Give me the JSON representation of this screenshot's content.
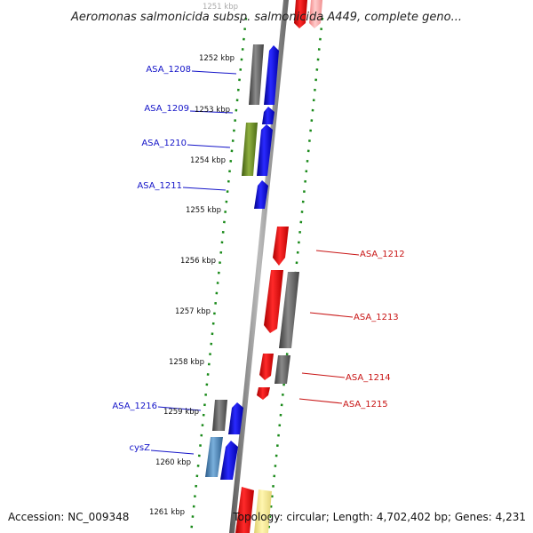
{
  "title": "Aeromonas salmonicida subsp. salmonicida A449, complete geno...",
  "accession": "Accession: NC_009348",
  "topology": "Topology: circular; Length: 4,702,402 bp; Genes: 4,231",
  "top_tick": "1251 kbp",
  "ticks": [
    "1252 kbp",
    "1253 kbp",
    "1254 kbp",
    "1255 kbp",
    "1256 kbp",
    "1257 kbp",
    "1258 kbp",
    "1259 kbp",
    "1260 kbp",
    "1261 kbp"
  ],
  "genes_left": [
    {
      "label": "ASA_1208",
      "color": "#1414c8"
    },
    {
      "label": "ASA_1209",
      "color": "#1414c8"
    },
    {
      "label": "ASA_1210",
      "color": "#1414c8"
    },
    {
      "label": "ASA_1211",
      "color": "#1414c8"
    },
    {
      "label": "ASA_1216",
      "color": "#1414c8"
    },
    {
      "label": "cysZ",
      "color": "#1414c8"
    }
  ],
  "genes_right": [
    {
      "label": "ASA_1212",
      "color": "#c81414"
    },
    {
      "label": "ASA_1213",
      "color": "#c81414"
    },
    {
      "label": "ASA_1214",
      "color": "#c81414"
    },
    {
      "label": "ASA_1215",
      "color": "#c81414"
    }
  ],
  "colors": {
    "forward": "#0000ff",
    "reverse": "#ff0000",
    "gray": "#666666",
    "olive": "#6b8e23",
    "steel": "#4682b4",
    "pale": "#f0e68c",
    "dots": "#1a8a1a",
    "backbone": "#888888"
  }
}
